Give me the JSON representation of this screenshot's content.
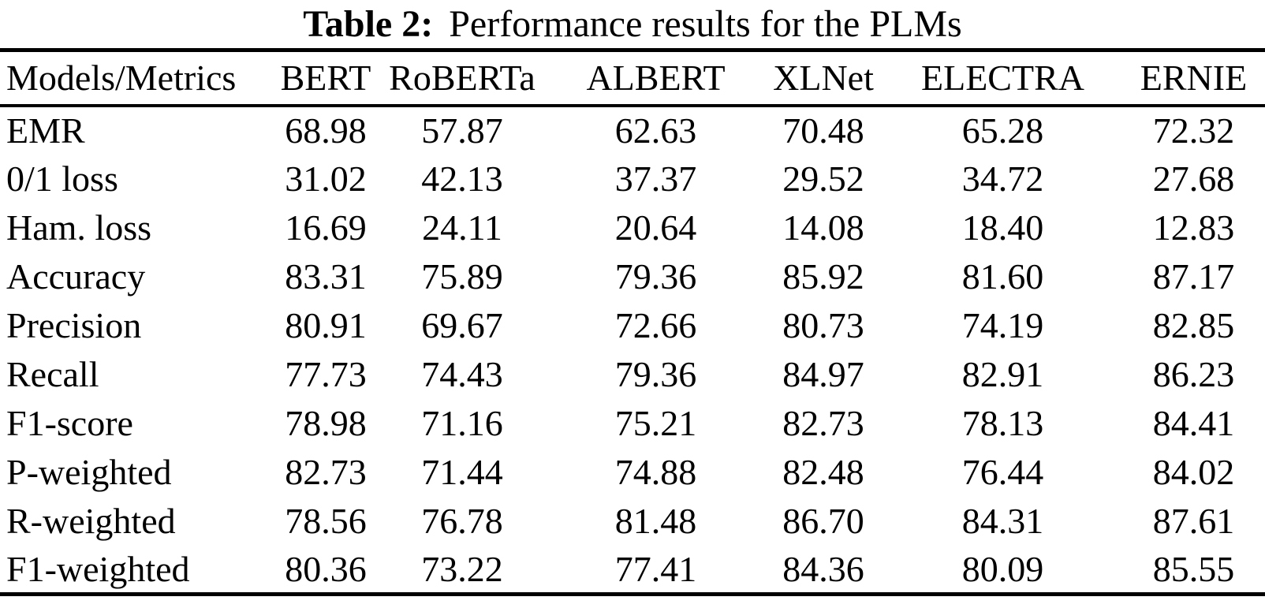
{
  "caption": {
    "label": "Table 2:",
    "text": "Performance results for the PLMs"
  },
  "table": {
    "columns": [
      "Models/Metrics",
      "BERT",
      "RoBERTa",
      "ALBERT",
      "XLNet",
      "ELECTRA",
      "ERNIE"
    ],
    "rows": [
      {
        "metric": "EMR",
        "values": [
          "68.98",
          "57.87",
          "62.63",
          "70.48",
          "65.28",
          "72.32"
        ]
      },
      {
        "metric": "0/1 loss",
        "values": [
          "31.02",
          "42.13",
          "37.37",
          "29.52",
          "34.72",
          "27.68"
        ]
      },
      {
        "metric": "Ham. loss",
        "values": [
          "16.69",
          "24.11",
          "20.64",
          "14.08",
          "18.40",
          "12.83"
        ]
      },
      {
        "metric": "Accuracy",
        "values": [
          "83.31",
          "75.89",
          "79.36",
          "85.92",
          "81.60",
          "87.17"
        ]
      },
      {
        "metric": "Precision",
        "values": [
          "80.91",
          "69.67",
          "72.66",
          "80.73",
          "74.19",
          "82.85"
        ]
      },
      {
        "metric": "Recall",
        "values": [
          "77.73",
          "74.43",
          "79.36",
          "84.97",
          "82.91",
          "86.23"
        ]
      },
      {
        "metric": "F1-score",
        "values": [
          "78.98",
          "71.16",
          "75.21",
          "82.73",
          "78.13",
          "84.41"
        ]
      },
      {
        "metric": "P-weighted",
        "values": [
          "82.73",
          "71.44",
          "74.88",
          "82.48",
          "76.44",
          "84.02"
        ]
      },
      {
        "metric": "R-weighted",
        "values": [
          "78.56",
          "76.78",
          "81.48",
          "86.70",
          "84.31",
          "87.61"
        ]
      },
      {
        "metric": "F1-weighted",
        "values": [
          "80.36",
          "73.22",
          "77.41",
          "84.36",
          "80.09",
          "85.55"
        ]
      }
    ]
  },
  "colors": {
    "text": "#000000",
    "background": "#ffffff",
    "rule": "#000000"
  }
}
